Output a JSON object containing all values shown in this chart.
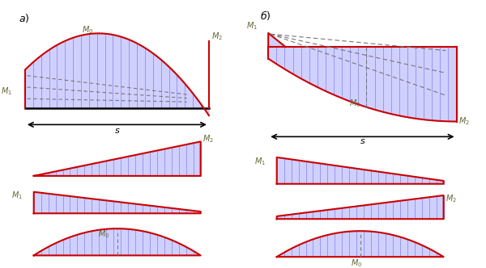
{
  "fig_width": 6.0,
  "fig_height": 3.32,
  "dpi": 100,
  "fill_color": "#aaaaff",
  "fill_alpha": 0.55,
  "line_color": "#cc0000",
  "line_width": 1.5,
  "hatch_color": "#3333bb",
  "label_color": "#666633",
  "dashed_color": "#777777",
  "bg_color": "#ffffff",
  "n_vlines": 24
}
